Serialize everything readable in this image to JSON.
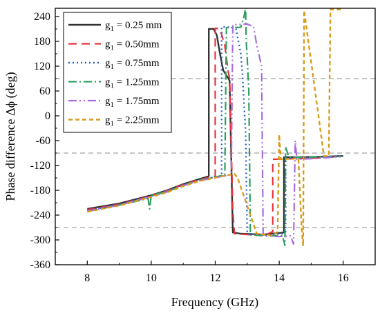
{
  "chart_data": {
    "type": "line",
    "xlabel": "Frequency (GHz)",
    "ylabel": "Phase difference Δϕ (deg)",
    "xlim": [
      7,
      17
    ],
    "ylim": [
      -360,
      260
    ],
    "xticks": [
      8,
      10,
      12,
      14,
      16
    ],
    "yticks": [
      -360,
      -300,
      -240,
      -180,
      -120,
      -60,
      0,
      60,
      120,
      180,
      240
    ],
    "grid": false,
    "reference_lines": [
      90,
      -90,
      -270
    ],
    "legend_position": "top-left",
    "series": [
      {
        "name": "g1 = 0.25 mm",
        "name_main": "g",
        "name_sub": "1",
        "name_rest": " = 0.25 mm",
        "color": "#333333",
        "dash": "solid",
        "width": 2.4,
        "points": [
          [
            8,
            -225
          ],
          [
            9,
            -212
          ],
          [
            10,
            -192
          ],
          [
            10.5,
            -180
          ],
          [
            11,
            -165
          ],
          [
            11.5,
            -153
          ],
          [
            11.8,
            -146
          ],
          [
            11.8,
            210
          ],
          [
            11.95,
            210
          ],
          [
            12.05,
            195
          ],
          [
            12.15,
            150
          ],
          [
            12.25,
            110
          ],
          [
            12.4,
            92
          ],
          [
            12.45,
            85
          ],
          [
            12.55,
            -282
          ],
          [
            12.8,
            -285
          ],
          [
            13.5,
            -287
          ],
          [
            14.15,
            -282
          ],
          [
            14.15,
            -100
          ],
          [
            14.6,
            -100
          ],
          [
            15.3,
            -99
          ],
          [
            16,
            -97
          ]
        ]
      },
      {
        "name": "g1 = 0.50mm",
        "name_main": "g",
        "name_sub": "1",
        "name_rest": " = 0.50mm",
        "color": "#e8323c",
        "dash": "12,7",
        "width": 2.2,
        "points": [
          [
            8,
            -227
          ],
          [
            9,
            -214
          ],
          [
            10,
            -193
          ],
          [
            10.5,
            -181
          ],
          [
            11,
            -166
          ],
          [
            11.5,
            -154
          ],
          [
            12.0,
            -146
          ],
          [
            12.0,
            212
          ],
          [
            12.15,
            210
          ],
          [
            12.3,
            170
          ],
          [
            12.4,
            110
          ],
          [
            12.45,
            90
          ],
          [
            12.55,
            -230
          ],
          [
            12.6,
            -285
          ],
          [
            13.2,
            -288
          ],
          [
            13.6,
            -287
          ],
          [
            13.8,
            -280
          ],
          [
            13.8,
            -105
          ],
          [
            14.3,
            -104
          ],
          [
            15.2,
            -102
          ],
          [
            16,
            -98
          ]
        ]
      },
      {
        "name": "g1 = 0.75mm",
        "name_main": "g",
        "name_sub": "1",
        "name_rest": " = 0.75mm",
        "color": "#2461c9",
        "dash": "2,4",
        "width": 2.4,
        "points": [
          [
            8,
            -229
          ],
          [
            9,
            -215
          ],
          [
            10,
            -194
          ],
          [
            10.5,
            -182
          ],
          [
            11,
            -167
          ],
          [
            11.5,
            -155
          ],
          [
            12.2,
            -145
          ],
          [
            12.2,
            215
          ],
          [
            12.5,
            214
          ],
          [
            12.65,
            210
          ],
          [
            12.8,
            150
          ],
          [
            12.85,
            100
          ],
          [
            12.95,
            -40
          ],
          [
            13.0,
            -285
          ],
          [
            13.5,
            -288
          ],
          [
            14.1,
            -285
          ],
          [
            14.2,
            -280
          ],
          [
            14.2,
            -102
          ],
          [
            15,
            -101
          ],
          [
            16,
            -98
          ]
        ]
      },
      {
        "name": "g1 = 1.25mm",
        "name_main": "g",
        "name_sub": "1",
        "name_rest": " = 1.25mm",
        "color": "#2e9e62",
        "dash": "12,4,2,4",
        "width": 2.2,
        "points": [
          [
            8,
            -231
          ],
          [
            9,
            -216
          ],
          [
            9.9,
            -200
          ],
          [
            9.95,
            -225
          ],
          [
            10.0,
            -192
          ],
          [
            10.5,
            -183
          ],
          [
            11,
            -168
          ],
          [
            11.5,
            -156
          ],
          [
            12.3,
            -143
          ],
          [
            12.35,
            213
          ],
          [
            12.8,
            214
          ],
          [
            12.9,
            240
          ],
          [
            12.95,
            262
          ],
          [
            12.97,
            180
          ],
          [
            13.0,
            140
          ],
          [
            13.05,
            60
          ],
          [
            13.1,
            -288
          ],
          [
            13.6,
            -290
          ],
          [
            14.1,
            -290
          ],
          [
            14.18,
            -313
          ],
          [
            14.2,
            -75
          ],
          [
            14.3,
            -100
          ],
          [
            15,
            -100
          ],
          [
            16,
            -98
          ]
        ]
      },
      {
        "name": "g1 = 1.75mm",
        "name_main": "g",
        "name_sub": "1",
        "name_rest": " = 1.75mm",
        "color": "#a66ee0",
        "dash": "12,4,2,4,2,4",
        "width": 2.2,
        "points": [
          [
            8,
            -230
          ],
          [
            9,
            -216
          ],
          [
            10,
            -195
          ],
          [
            10.5,
            -184
          ],
          [
            11,
            -169
          ],
          [
            11.5,
            -157
          ],
          [
            12.5,
            -142
          ],
          [
            12.55,
            220
          ],
          [
            13.0,
            222
          ],
          [
            13.2,
            215
          ],
          [
            13.3,
            170
          ],
          [
            13.45,
            120
          ],
          [
            13.5,
            -290
          ],
          [
            14.0,
            -292
          ],
          [
            14.35,
            -290
          ],
          [
            14.45,
            -310
          ],
          [
            14.5,
            -60
          ],
          [
            14.55,
            -105
          ],
          [
            15.2,
            -103
          ],
          [
            16,
            -98
          ]
        ]
      },
      {
        "name": "g1 = 2.25mm",
        "name_main": "g",
        "name_sub": "1",
        "name_rest": " = 2.25mm",
        "color": "#d99b19",
        "dash": "6,4",
        "width": 2.4,
        "points": [
          [
            8,
            -232
          ],
          [
            9,
            -217
          ],
          [
            10,
            -196
          ],
          [
            10.5,
            -185
          ],
          [
            11,
            -170
          ],
          [
            11.5,
            -158
          ],
          [
            12.6,
            -140
          ],
          [
            12.6,
            -140
          ],
          [
            12.7,
            -150
          ],
          [
            13.3,
            -285
          ],
          [
            13.8,
            -290
          ],
          [
            13.95,
            -280
          ],
          [
            14.0,
            -45
          ],
          [
            14.05,
            -105
          ],
          [
            14.6,
            -103
          ],
          [
            14.7,
            -270
          ],
          [
            14.75,
            -315
          ],
          [
            14.78,
            255
          ],
          [
            15.4,
            -98
          ],
          [
            15.55,
            -96
          ],
          [
            15.6,
            257
          ],
          [
            16,
            257
          ]
        ]
      }
    ]
  }
}
